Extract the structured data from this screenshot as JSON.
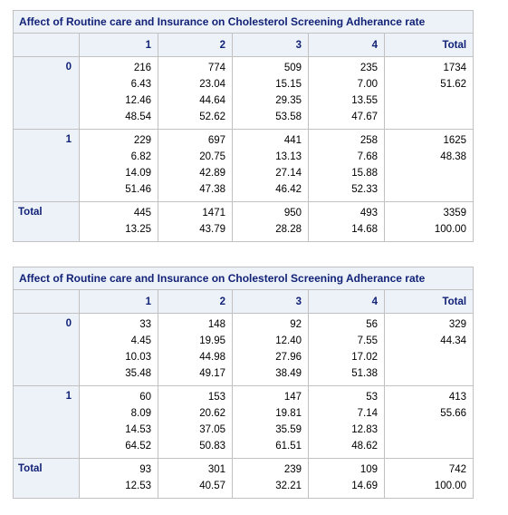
{
  "tables": [
    {
      "title": "Affect of Routine care and Insurance on Cholesterol Screening Adherance rate",
      "columns": [
        "1",
        "2",
        "3",
        "4",
        "Total"
      ],
      "rows": [
        {
          "label": "0",
          "cells": [
            [
              "216",
              "6.43",
              "12.46",
              "48.54"
            ],
            [
              "774",
              "23.04",
              "44.64",
              "52.62"
            ],
            [
              "509",
              "15.15",
              "29.35",
              "53.58"
            ],
            [
              "235",
              "7.00",
              "13.55",
              "47.67"
            ],
            [
              "1734",
              "51.62"
            ]
          ]
        },
        {
          "label": "1",
          "cells": [
            [
              "229",
              "6.82",
              "14.09",
              "51.46"
            ],
            [
              "697",
              "20.75",
              "42.89",
              "47.38"
            ],
            [
              "441",
              "13.13",
              "27.14",
              "46.42"
            ],
            [
              "258",
              "7.68",
              "15.88",
              "52.33"
            ],
            [
              "1625",
              "48.38"
            ]
          ]
        },
        {
          "label": "Total",
          "cells": [
            [
              "445",
              "13.25"
            ],
            [
              "1471",
              "43.79"
            ],
            [
              "950",
              "28.28"
            ],
            [
              "493",
              "14.68"
            ],
            [
              "3359",
              "100.00"
            ]
          ]
        }
      ]
    },
    {
      "title": "Affect of Routine care and Insurance on Cholesterol Screening Adherance rate",
      "columns": [
        "1",
        "2",
        "3",
        "4",
        "Total"
      ],
      "rows": [
        {
          "label": "0",
          "cells": [
            [
              "33",
              "4.45",
              "10.03",
              "35.48"
            ],
            [
              "148",
              "19.95",
              "44.98",
              "49.17"
            ],
            [
              "92",
              "12.40",
              "27.96",
              "38.49"
            ],
            [
              "56",
              "7.55",
              "17.02",
              "51.38"
            ],
            [
              "329",
              "44.34"
            ]
          ]
        },
        {
          "label": "1",
          "cells": [
            [
              "60",
              "8.09",
              "14.53",
              "64.52"
            ],
            [
              "153",
              "20.62",
              "37.05",
              "50.83"
            ],
            [
              "147",
              "19.81",
              "35.59",
              "61.51"
            ],
            [
              "53",
              "7.14",
              "12.83",
              "48.62"
            ],
            [
              "413",
              "55.66"
            ]
          ]
        },
        {
          "label": "Total",
          "cells": [
            [
              "93",
              "12.53"
            ],
            [
              "301",
              "40.57"
            ],
            [
              "239",
              "32.21"
            ],
            [
              "109",
              "14.69"
            ],
            [
              "742",
              "100.00"
            ]
          ]
        }
      ]
    }
  ]
}
